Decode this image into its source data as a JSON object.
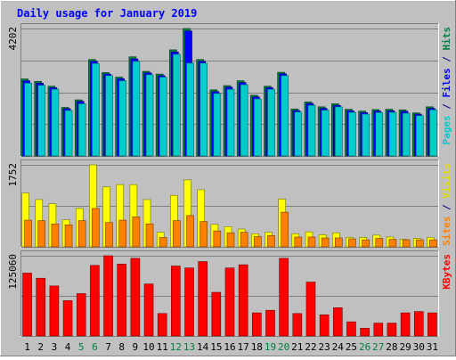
{
  "chart_data": [
    {
      "type": "bar",
      "panel": "hits-files-pages",
      "title": "Daily usage for January 2019",
      "ylabel_parts": [
        {
          "text": "Pages",
          "color": "#00cccc"
        },
        {
          "text": " / ",
          "color": "#000080"
        },
        {
          "text": "Files",
          "color": "#0000ff"
        },
        {
          "text": " / ",
          "color": "#000080"
        },
        {
          "text": "Hits",
          "color": "#008040"
        }
      ],
      "ymax_label": "4202",
      "ylim": [
        0,
        4202
      ],
      "categories": [
        "1",
        "2",
        "3",
        "4",
        "5",
        "6",
        "7",
        "8",
        "9",
        "10",
        "11",
        "12",
        "13",
        "14",
        "15",
        "16",
        "17",
        "18",
        "19",
        "20",
        "21",
        "22",
        "23",
        "24",
        "25",
        "26",
        "27",
        "28",
        "29",
        "30",
        "31"
      ],
      "series": [
        {
          "name": "Hits",
          "color": "#008040",
          "values": [
            2540,
            2460,
            2300,
            1600,
            1850,
            3180,
            2750,
            2600,
            3270,
            2790,
            2700,
            3500,
            4202,
            3180,
            2180,
            2320,
            2480,
            2000,
            2300,
            2760,
            1550,
            1780,
            1620,
            1720,
            1540,
            1480,
            1530,
            1540,
            1520,
            1420,
            1620
          ]
        },
        {
          "name": "Files",
          "color": "#0000ff",
          "values": [
            2480,
            2400,
            2250,
            1560,
            1800,
            3120,
            2700,
            2550,
            3200,
            2740,
            2650,
            3430,
            4120,
            3120,
            2120,
            2270,
            2420,
            1950,
            2250,
            2710,
            1500,
            1730,
            1570,
            1670,
            1490,
            1430,
            1480,
            1490,
            1470,
            1380,
            1570
          ]
        },
        {
          "name": "Pages",
          "color": "#00cccc",
          "values": [
            2400,
            2330,
            2200,
            1500,
            1720,
            3050,
            2650,
            2480,
            3120,
            2680,
            2600,
            3350,
            3060,
            3060,
            2060,
            2200,
            2350,
            1880,
            2200,
            2650,
            1450,
            1670,
            1510,
            1620,
            1440,
            1380,
            1430,
            1440,
            1410,
            1330,
            1520
          ]
        }
      ]
    },
    {
      "type": "bar",
      "panel": "visits-sites",
      "ylabel_parts": [
        {
          "text": "Sites",
          "color": "#ff8000"
        },
        {
          "text": " / ",
          "color": "#000080"
        },
        {
          "text": "Visits",
          "color": "#e0e000"
        }
      ],
      "ymax_label": "1752",
      "ylim": [
        0,
        1752
      ],
      "categories": [
        "1",
        "2",
        "3",
        "4",
        "5",
        "6",
        "7",
        "8",
        "9",
        "10",
        "11",
        "12",
        "13",
        "14",
        "15",
        "16",
        "17",
        "18",
        "19",
        "20",
        "21",
        "22",
        "23",
        "24",
        "25",
        "26",
        "27",
        "28",
        "29",
        "30",
        "31"
      ],
      "series": [
        {
          "name": "Visits",
          "color": "#ffff00",
          "values": [
            1150,
            1010,
            920,
            580,
            820,
            1752,
            1280,
            1330,
            1330,
            1010,
            310,
            1100,
            1430,
            1220,
            480,
            430,
            380,
            280,
            310,
            1020,
            280,
            320,
            260,
            300,
            200,
            200,
            250,
            210,
            160,
            180,
            200
          ]
        },
        {
          "name": "Sites",
          "color": "#ff8000",
          "values": [
            570,
            560,
            490,
            470,
            560,
            820,
            520,
            570,
            640,
            490,
            200,
            560,
            670,
            540,
            340,
            300,
            310,
            220,
            240,
            740,
            210,
            210,
            190,
            190,
            170,
            150,
            180,
            160,
            150,
            150,
            150
          ]
        }
      ]
    },
    {
      "type": "bar",
      "panel": "kbytes",
      "ylabel_parts": [
        {
          "text": "KBytes",
          "color": "#ff0000"
        }
      ],
      "ymax_label": "125060",
      "ylim": [
        0,
        125060
      ],
      "categories": [
        "1",
        "2",
        "3",
        "4",
        "5",
        "6",
        "7",
        "8",
        "9",
        "10",
        "11",
        "12",
        "13",
        "14",
        "15",
        "16",
        "17",
        "18",
        "19",
        "20",
        "21",
        "22",
        "23",
        "24",
        "25",
        "26",
        "27",
        "28",
        "29",
        "30",
        "31"
      ],
      "series": [
        {
          "name": "KBytes",
          "color": "#ff0000",
          "values": [
            98000,
            90000,
            78000,
            55000,
            66000,
            110000,
            125060,
            112000,
            121000,
            81000,
            35000,
            109000,
            106000,
            116000,
            68000,
            106000,
            111000,
            36000,
            40000,
            121000,
            35000,
            84000,
            33000,
            44000,
            22000,
            12000,
            20000,
            20000,
            36000,
            38000,
            36000
          ]
        }
      ]
    }
  ],
  "day_labels": [
    {
      "text": "1",
      "color": "#000000"
    },
    {
      "text": "2",
      "color": "#000000"
    },
    {
      "text": "3",
      "color": "#000000"
    },
    {
      "text": "4",
      "color": "#000000"
    },
    {
      "text": "5",
      "color": "#008040"
    },
    {
      "text": "6",
      "color": "#008040"
    },
    {
      "text": "7",
      "color": "#000000"
    },
    {
      "text": "8",
      "color": "#000000"
    },
    {
      "text": "9",
      "color": "#000000"
    },
    {
      "text": "10",
      "color": "#000000"
    },
    {
      "text": "11",
      "color": "#000000"
    },
    {
      "text": "12",
      "color": "#008040"
    },
    {
      "text": "13",
      "color": "#008040"
    },
    {
      "text": "14",
      "color": "#000000"
    },
    {
      "text": "15",
      "color": "#000000"
    },
    {
      "text": "16",
      "color": "#000000"
    },
    {
      "text": "17",
      "color": "#000000"
    },
    {
      "text": "18",
      "color": "#000000"
    },
    {
      "text": "19",
      "color": "#008040"
    },
    {
      "text": "20",
      "color": "#008040"
    },
    {
      "text": "21",
      "color": "#000000"
    },
    {
      "text": "22",
      "color": "#000000"
    },
    {
      "text": "23",
      "color": "#000000"
    },
    {
      "text": "24",
      "color": "#000000"
    },
    {
      "text": "25",
      "color": "#000000"
    },
    {
      "text": "26",
      "color": "#008040"
    },
    {
      "text": "27",
      "color": "#008040"
    },
    {
      "text": "28",
      "color": "#000000"
    },
    {
      "text": "29",
      "color": "#000000"
    },
    {
      "text": "30",
      "color": "#000000"
    },
    {
      "text": "31",
      "color": "#000000"
    }
  ],
  "colors": {
    "background": "#c0c0c0",
    "panel": "#c0c0c0",
    "gridline": "#808080",
    "title": "#0000ff",
    "weekend": "#008040"
  }
}
